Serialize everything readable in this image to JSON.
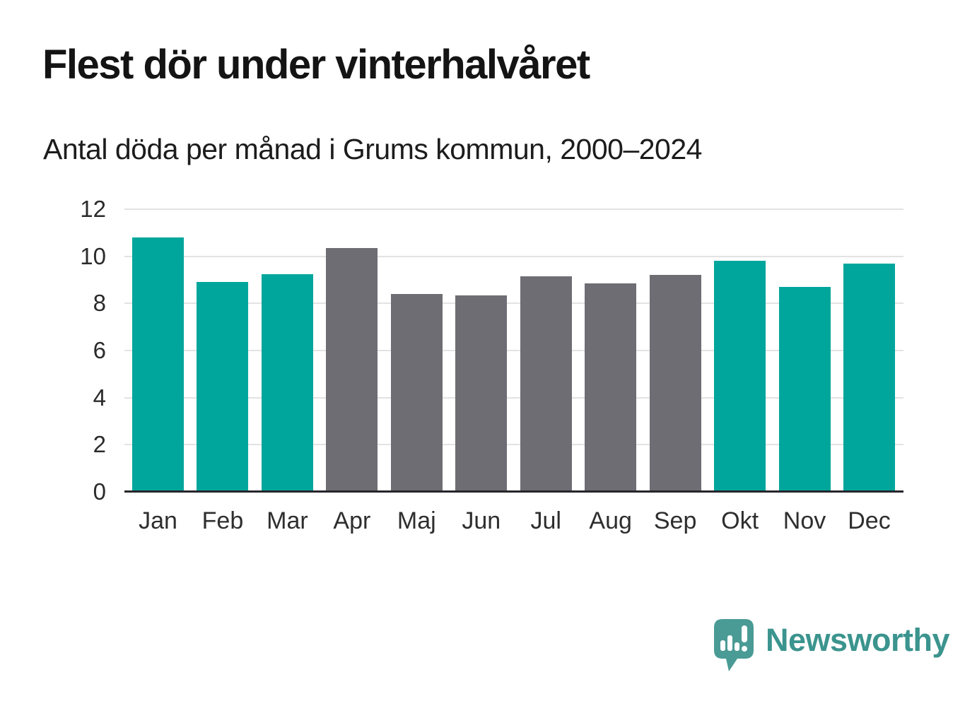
{
  "header": {
    "title": "Flest dör under vinterhalvåret",
    "subtitle": "Antal döda per månad i Grums kommun, 2000–2024"
  },
  "chart_data": {
    "type": "bar",
    "title": "Flest dör under vinterhalvåret",
    "subtitle": "Antal döda per månad i Grums kommun, 2000–2024",
    "categories": [
      "Jan",
      "Feb",
      "Mar",
      "Apr",
      "Maj",
      "Jun",
      "Jul",
      "Aug",
      "Sep",
      "Okt",
      "Nov",
      "Dec"
    ],
    "values": [
      10.8,
      8.9,
      9.25,
      10.35,
      8.4,
      8.35,
      9.15,
      8.85,
      9.2,
      9.8,
      8.7,
      9.7
    ],
    "seasons": [
      "winter",
      "winter",
      "winter",
      "summer",
      "summer",
      "summer",
      "summer",
      "summer",
      "summer",
      "winter",
      "winter",
      "winter"
    ],
    "xlabel": "",
    "ylabel": "",
    "ylim": [
      0,
      12
    ],
    "yticks": [
      0,
      2,
      4,
      6,
      8,
      10,
      12
    ],
    "grid": true,
    "legend": false
  },
  "colors": {
    "winter_bar": "#00A69C",
    "summer_bar": "#6D6D73",
    "gridline": "#E3E3E3",
    "axis_line": "#26262B",
    "title_text": "#141414",
    "logo_teal": "#3B948E",
    "logo_icon_teal": "#4A9B95"
  },
  "footer": {
    "brand": "Newsworthy"
  }
}
